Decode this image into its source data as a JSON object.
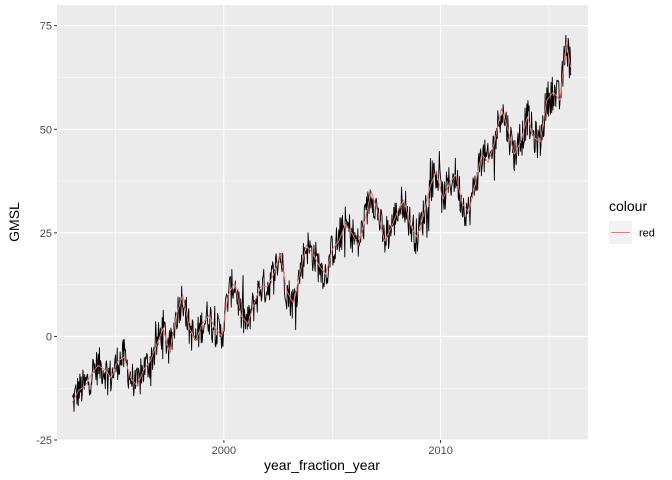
{
  "chart_data": {
    "type": "line",
    "xlabel": "year_fraction_year",
    "ylabel": "GMSL",
    "xlim": [
      1992.3,
      2016.8
    ],
    "ylim": [
      -25,
      80
    ],
    "x_ticks": [
      2000,
      2010
    ],
    "x_tick_labels": [
      "2000",
      "2010"
    ],
    "y_ticks": [
      -25,
      0,
      25,
      50,
      75
    ],
    "y_tick_labels": [
      "-25",
      "0",
      "25",
      "50",
      "75"
    ],
    "grid": true,
    "legend": {
      "title": "colour",
      "position": "right",
      "entries": [
        {
          "label": "red",
          "color": "#F8766D"
        }
      ]
    },
    "series": [
      {
        "color": "#000000",
        "style": "noisy",
        "x": [
          1993.0,
          1993.3,
          1993.6,
          1993.9,
          1994.2,
          1994.5,
          1994.8,
          1995.1,
          1995.4,
          1995.7,
          1996.0,
          1996.3,
          1996.6,
          1996.9,
          1997.2,
          1997.5,
          1997.8,
          1998.1,
          1998.4,
          1998.7,
          1999.0,
          1999.3,
          1999.6,
          1999.9,
          2000.2,
          2000.5,
          2000.8,
          2001.1,
          2001.4,
          2001.7,
          2002.0,
          2002.3,
          2002.6,
          2002.9,
          2003.2,
          2003.5,
          2003.8,
          2004.1,
          2004.4,
          2004.7,
          2005.0,
          2005.3,
          2005.6,
          2005.9,
          2006.2,
          2006.5,
          2006.8,
          2007.1,
          2007.4,
          2007.7,
          2008.0,
          2008.3,
          2008.6,
          2008.9,
          2009.2,
          2009.5,
          2009.8,
          2010.1,
          2010.4,
          2010.7,
          2011.0,
          2011.3,
          2011.6,
          2011.9,
          2012.2,
          2012.5,
          2012.8,
          2013.1,
          2013.4,
          2013.7,
          2014.0,
          2014.3,
          2014.6,
          2014.9,
          2015.2,
          2015.5,
          2015.8,
          2016.0
        ],
        "y": [
          -16,
          -13,
          -12,
          -9,
          -7,
          -8,
          -10,
          -6,
          -5,
          -10,
          -12,
          -8,
          -6,
          -2,
          2,
          -4,
          5,
          10,
          2,
          -1,
          3,
          5,
          2,
          0,
          10,
          13,
          5,
          3,
          8,
          12,
          12,
          15,
          20,
          11,
          8,
          15,
          22,
          20,
          17,
          15,
          21,
          23,
          27,
          25,
          22,
          28,
          35,
          30,
          23,
          26,
          30,
          33,
          27,
          24,
          29,
          36,
          40,
          33,
          37,
          39,
          32,
          30,
          37,
          44,
          42,
          47,
          55,
          50,
          44,
          47,
          53,
          48,
          47,
          57,
          59,
          57,
          71,
          65
        ]
      },
      {
        "color": "#F8766D",
        "style": "smooth",
        "x": [
          1993.0,
          1993.3,
          1993.6,
          1993.9,
          1994.2,
          1994.5,
          1994.8,
          1995.1,
          1995.4,
          1995.7,
          1996.0,
          1996.3,
          1996.6,
          1996.9,
          1997.2,
          1997.5,
          1997.8,
          1998.1,
          1998.4,
          1998.7,
          1999.0,
          1999.3,
          1999.6,
          1999.9,
          2000.2,
          2000.5,
          2000.8,
          2001.1,
          2001.4,
          2001.7,
          2002.0,
          2002.3,
          2002.6,
          2002.9,
          2003.2,
          2003.5,
          2003.8,
          2004.1,
          2004.4,
          2004.7,
          2005.0,
          2005.3,
          2005.6,
          2005.9,
          2006.2,
          2006.5,
          2006.8,
          2007.1,
          2007.4,
          2007.7,
          2008.0,
          2008.3,
          2008.6,
          2008.9,
          2009.2,
          2009.5,
          2009.8,
          2010.1,
          2010.4,
          2010.7,
          2011.0,
          2011.3,
          2011.6,
          2011.9,
          2012.2,
          2012.5,
          2012.8,
          2013.1,
          2013.4,
          2013.7,
          2014.0,
          2014.3,
          2014.6,
          2014.9,
          2015.2,
          2015.5,
          2015.8,
          2016.0
        ],
        "y": [
          -16,
          -13,
          -12,
          -9,
          -7,
          -8,
          -10,
          -6,
          -5,
          -10,
          -12,
          -8,
          -6,
          -2,
          2,
          -4,
          5,
          10,
          2,
          -1,
          3,
          5,
          2,
          0,
          10,
          13,
          5,
          3,
          8,
          12,
          12,
          15,
          20,
          11,
          8,
          15,
          22,
          20,
          17,
          15,
          21,
          23,
          27,
          25,
          22,
          28,
          35,
          30,
          23,
          26,
          30,
          33,
          27,
          24,
          29,
          36,
          40,
          33,
          37,
          39,
          32,
          30,
          37,
          44,
          42,
          47,
          55,
          50,
          44,
          47,
          53,
          48,
          47,
          57,
          59,
          57,
          71,
          65
        ]
      }
    ]
  }
}
